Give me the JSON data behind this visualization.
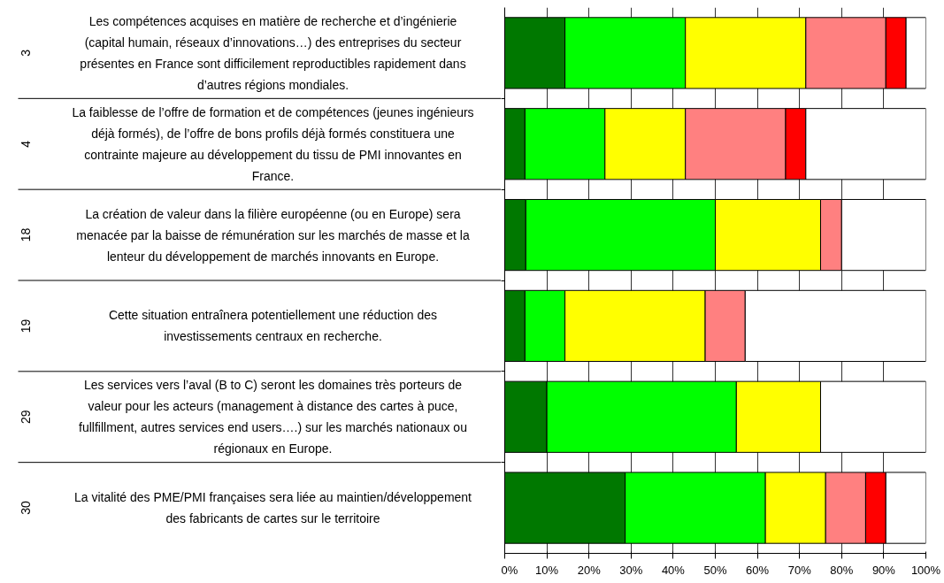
{
  "chart_data": {
    "type": "bar",
    "orientation": "horizontal",
    "stacked": true,
    "categories": [
      "Les compétences acquises en matière de recherche et d’ingénierie\n(capital humain, réseaux d’innovations…) des entreprises du secteur\nprésentes en France sont difficilement reproductibles rapidement dans\nd’autres régions mondiales.",
      "La faiblesse de l’offre de formation et de compétences (jeunes ingénieurs\ndéjà formés), de l’offre de bons profils déjà formés constituera une\ncontrainte majeure au développement du tissu de PMI innovantes en\nFrance.",
      "La création de valeur dans la filière européenne (ou en Europe) sera\nmenacée par la baisse de rémunération sur les marchés de masse et la\nlenteur du développement de marchés innovants en Europe.",
      "Cette situation entraînera potentiellement une réduction des\ninvestissements centraux en recherche.",
      "Les services vers l’aval (B to C) seront les domaines très porteurs de\nvaleur pour les acteurs (management à distance des cartes à puce,\nfullfillment, autres services end users….) sur les marchés nationaux ou\nrégionaux en Europe.",
      "La vitalité des PME/PMI françaises sera liée au maintien/développement\ndes fabricants de cartes sur le territoire"
    ],
    "series": [
      {
        "color": "#007800",
        "values": [
          14.3,
          4.8,
          5,
          4.8,
          10,
          28.6
        ]
      },
      {
        "color": "#00ff00",
        "values": [
          28.6,
          19,
          45,
          9.5,
          45,
          33.3
        ]
      },
      {
        "color": "#ffff00",
        "values": [
          28.6,
          19.1,
          25,
          33.3,
          20,
          14.3
        ]
      },
      {
        "color": "#ff8080",
        "values": [
          19,
          23.8,
          5,
          9.5,
          null,
          9.5
        ]
      },
      {
        "color": "#ff0000",
        "values": [
          4.8,
          4.8,
          null,
          null,
          null,
          4.8
        ]
      },
      {
        "color": "#ffffff",
        "values": [
          4.7,
          28.5,
          20,
          42.9,
          25,
          9.5
        ]
      }
    ],
    "xlim": [
      0,
      100
    ],
    "xticks": [
      {
        "value": 0,
        "label": "0%"
      },
      {
        "value": 10,
        "label": "10%"
      },
      {
        "value": 20,
        "label": "20%"
      },
      {
        "value": 30,
        "label": "30%"
      },
      {
        "value": 40,
        "label": "40%"
      },
      {
        "value": 50,
        "label": "50%"
      },
      {
        "value": 60,
        "label": "60%"
      },
      {
        "value": 70,
        "label": "70%"
      },
      {
        "value": 80,
        "label": "80%"
      },
      {
        "value": 90,
        "label": "90%"
      },
      {
        "value": 100,
        "label": "100%"
      }
    ],
    "grid": "x",
    "annotations": [
      "3",
      "4",
      "18",
      "19",
      "29",
      "30"
    ]
  }
}
